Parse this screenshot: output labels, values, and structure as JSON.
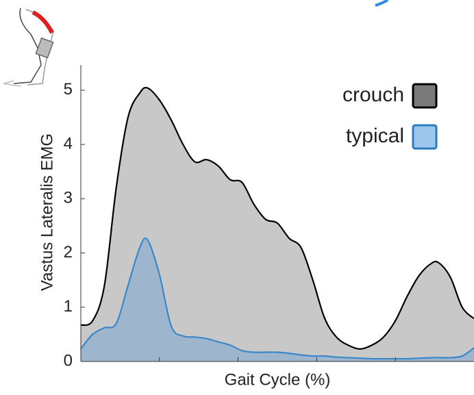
{
  "chart_data": {
    "type": "area",
    "xlabel": "Gait Cycle (%)",
    "ylabel": "Vastus Lateralis EMG",
    "x": [
      0,
      3,
      6,
      9,
      12,
      15,
      17,
      20,
      23,
      26,
      29,
      32,
      35,
      38,
      41,
      44,
      47,
      50,
      53,
      56,
      59,
      62,
      65,
      68,
      71,
      74,
      77,
      80,
      83,
      86,
      89,
      91,
      94,
      97,
      100
    ],
    "series": [
      {
        "name": "crouch",
        "color": "#c8c8c8",
        "line_color": "#000000",
        "legend_color": "#7a7a7a",
        "values": [
          0.67,
          0.75,
          1.4,
          3.2,
          4.5,
          4.95,
          5.04,
          4.82,
          4.45,
          4.0,
          3.68,
          3.72,
          3.6,
          3.35,
          3.3,
          2.9,
          2.62,
          2.55,
          2.27,
          2.1,
          1.5,
          0.8,
          0.45,
          0.3,
          0.23,
          0.3,
          0.45,
          0.75,
          1.2,
          1.58,
          1.8,
          1.82,
          1.55,
          1.0,
          0.79
        ]
      },
      {
        "name": "typical",
        "color": "#8fb0d0",
        "line_color": "#3a87c8",
        "legend_color": "#9cc6ea",
        "values": [
          0.23,
          0.5,
          0.62,
          0.7,
          1.4,
          2.1,
          2.24,
          1.6,
          0.65,
          0.47,
          0.45,
          0.42,
          0.36,
          0.3,
          0.2,
          0.17,
          0.17,
          0.17,
          0.15,
          0.12,
          0.1,
          0.1,
          0.08,
          0.07,
          0.06,
          0.05,
          0.05,
          0.05,
          0.05,
          0.06,
          0.07,
          0.07,
          0.07,
          0.1,
          0.25
        ]
      }
    ],
    "xlim": [
      0,
      100
    ],
    "xticks": [
      20,
      40,
      60,
      80
    ],
    "ylim": [
      0,
      5.3
    ],
    "yticks": [
      0,
      1,
      2,
      3,
      4,
      5
    ],
    "legend": "upper right"
  }
}
